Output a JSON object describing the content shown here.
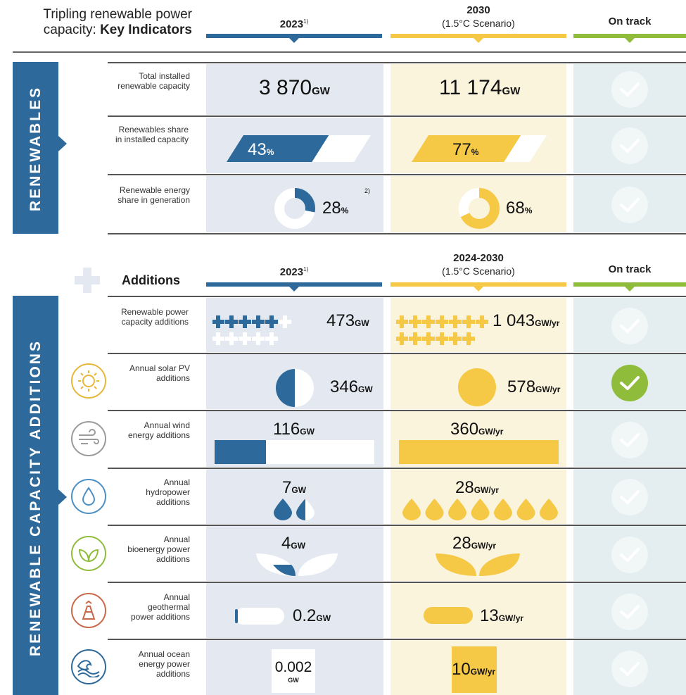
{
  "colors": {
    "blue": "#2d6a9b",
    "yellow": "#f5c945",
    "green": "#8fbc3b",
    "blue_bg": "#e4e9f1",
    "yellow_bg": "#fbf4dc",
    "green_bg": "#e4eef0"
  },
  "header": {
    "title_line1": "Tripling renewable power",
    "title_line2_prefix": "capacity: ",
    "title_line2_bold": "Key Indicators",
    "col_2023": "2023",
    "col_2023_note": "1)",
    "col_2030": "2030",
    "col_2030_sub": "(1.5°C Scenario)",
    "col_track": "On track"
  },
  "section1": {
    "side_label": "RENEWABLES",
    "rows": [
      {
        "label": "Total installed renewable capacity",
        "v2023": "3 870",
        "u2023": "GW",
        "v2030": "11 174",
        "u2030": "GW",
        "on_track": false
      },
      {
        "label": "Renewables share in installed capacity",
        "v2023": "43",
        "u2023": "%",
        "v2030": "77",
        "u2030": "%",
        "on_track": false
      },
      {
        "label": "Renewable energy share in generation",
        "v2023": "28",
        "u2023": "%",
        "note2023": "2)",
        "v2030": "68",
        "u2030": "%",
        "on_track": false
      }
    ]
  },
  "section2": {
    "side_label": "RENEWABLE CAPACITY ADDITIONS",
    "additions_label": "Additions",
    "col_2023": "2023",
    "col_2023_note": "1)",
    "col_2030": "2024-2030",
    "col_2030_sub": "(1.5°C Scenario)",
    "col_track": "On track",
    "rows": [
      {
        "icon": "plus-icon",
        "label": "Renewable power capacity additions",
        "v2023": "473",
        "u2023": "GW",
        "v2030": "1 043",
        "u2030": "GW/yr",
        "on_track": false
      },
      {
        "icon": "sun-icon",
        "label": "Annual solar PV additions",
        "v2023": "346",
        "u2023": "GW",
        "v2030": "578",
        "u2030": "GW/yr",
        "on_track": true
      },
      {
        "icon": "wind-icon",
        "label": "Annual wind energy additions",
        "v2023": "116",
        "u2023": "GW",
        "v2030": "360",
        "u2030": "GW/yr",
        "on_track": false
      },
      {
        "icon": "water-drop-icon",
        "label": "Annual hydropower additions",
        "v2023": "7",
        "u2023": "GW",
        "v2030": "28",
        "u2030": "GW/yr",
        "on_track": false
      },
      {
        "icon": "leaf-icon",
        "label": "Annual bioenergy power additions",
        "v2023": "4",
        "u2023": "GW",
        "v2030": "28",
        "u2030": "GW/yr",
        "on_track": false
      },
      {
        "icon": "geothermal-icon",
        "label": "Annual geothermal power additions",
        "v2023": "0.2",
        "u2023": "GW",
        "v2030": "13",
        "u2030": "GW/yr",
        "on_track": false
      },
      {
        "icon": "wave-icon",
        "label": "Annual ocean energy power additions",
        "v2023": "0.002",
        "u2023": "GW",
        "v2030": "10",
        "u2030": "GW/yr",
        "on_track": false
      }
    ]
  },
  "chart_data": {
    "type": "table",
    "title": "Tripling renewable power capacity: Key Indicators",
    "columns": [
      "2023",
      "2030 (1.5°C Scenario)",
      "On track"
    ],
    "renewables": [
      {
        "indicator": "Total installed renewable capacity",
        "2023": 3870,
        "2030": 11174,
        "unit": "GW",
        "on_track": false
      },
      {
        "indicator": "Renewables share in installed capacity",
        "2023": 43,
        "2030": 77,
        "unit": "%",
        "on_track": false
      },
      {
        "indicator": "Renewable energy share in generation",
        "2023": 28,
        "2030": 68,
        "unit": "%",
        "on_track": false
      }
    ],
    "additions": [
      {
        "indicator": "Renewable power capacity additions",
        "2023": 473,
        "2024-2030": 1043,
        "unit_2023": "GW",
        "unit_2030": "GW/yr",
        "on_track": false
      },
      {
        "indicator": "Annual solar PV additions",
        "2023": 346,
        "2024-2030": 578,
        "unit_2023": "GW",
        "unit_2030": "GW/yr",
        "on_track": true
      },
      {
        "indicator": "Annual wind energy additions",
        "2023": 116,
        "2024-2030": 360,
        "unit_2023": "GW",
        "unit_2030": "GW/yr",
        "on_track": false
      },
      {
        "indicator": "Annual hydropower additions",
        "2023": 7,
        "2024-2030": 28,
        "unit_2023": "GW",
        "unit_2030": "GW/yr",
        "on_track": false
      },
      {
        "indicator": "Annual bioenergy power additions",
        "2023": 4,
        "2024-2030": 28,
        "unit_2023": "GW",
        "unit_2030": "GW/yr",
        "on_track": false
      },
      {
        "indicator": "Annual geothermal power additions",
        "2023": 0.2,
        "2024-2030": 13,
        "unit_2023": "GW",
        "unit_2030": "GW/yr",
        "on_track": false
      },
      {
        "indicator": "Annual ocean energy power additions",
        "2023": 0.002,
        "2024-2030": 10,
        "unit_2023": "GW",
        "unit_2030": "GW/yr",
        "on_track": false
      }
    ]
  }
}
